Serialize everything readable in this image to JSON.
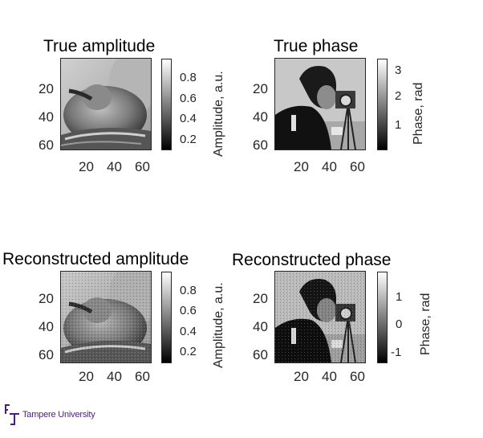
{
  "panels": [
    {
      "title": "True amplitude",
      "axis_ticks_y": [
        "20",
        "40",
        "60"
      ],
      "axis_ticks_x": [
        "20",
        "40",
        "60"
      ],
      "colorbar_ticks": [
        "0.8",
        "0.6",
        "0.4",
        "0.2"
      ],
      "colorbar_label": "Amplitude, a.u.",
      "image": "peppers-grayscale"
    },
    {
      "title": "True phase",
      "axis_ticks_y": [
        "20",
        "40",
        "60"
      ],
      "axis_ticks_x": [
        "20",
        "40",
        "60"
      ],
      "colorbar_ticks": [
        "3",
        "2",
        "1"
      ],
      "colorbar_label": "Phase, rad",
      "image": "cameraman-grayscale"
    },
    {
      "title": "Reconstructed amplitude",
      "axis_ticks_y": [
        "20",
        "40",
        "60"
      ],
      "axis_ticks_x": [
        "20",
        "40",
        "60"
      ],
      "colorbar_ticks": [
        "0.8",
        "0.6",
        "0.4",
        "0.2"
      ],
      "colorbar_label": "Amplitude, a.u.",
      "image": "peppers-grayscale-noisy"
    },
    {
      "title": "Reconstructed phase",
      "axis_ticks_y": [
        "20",
        "40",
        "60"
      ],
      "axis_ticks_x": [
        "20",
        "40",
        "60"
      ],
      "colorbar_ticks": [
        "1",
        "0",
        "-1"
      ],
      "colorbar_label": "Phase, rad",
      "image": "cameraman-grayscale-noisy"
    }
  ],
  "logo": {
    "text": "Tampere University",
    "icon": "tampere-university-logo-icon",
    "color": "#4b1c87"
  },
  "colors": {
    "axis": "#262626",
    "background": "#ffffff"
  }
}
